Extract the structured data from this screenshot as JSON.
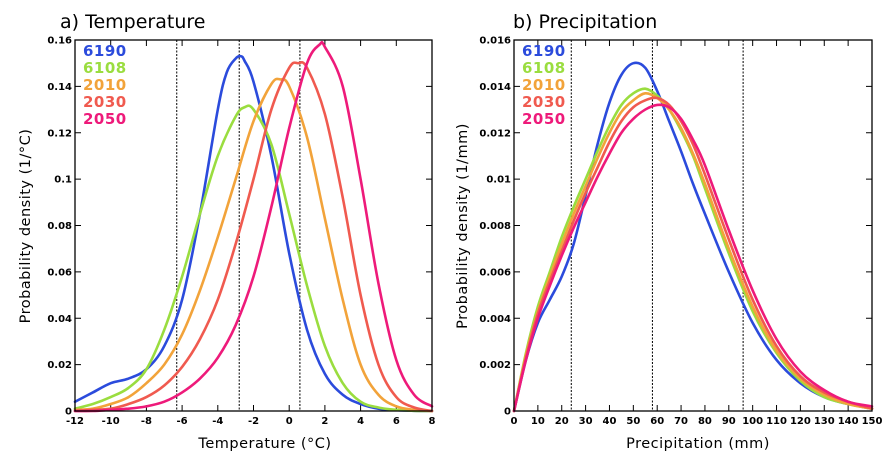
{
  "colors": {
    "6190": "#2b4bdc",
    "6108": "#9add3f",
    "2010": "#f2a33a",
    "2030": "#f05a4f",
    "2050": "#ee1a7a"
  },
  "chart_data": [
    {
      "type": "line",
      "title": "a) Temperature",
      "xlabel": "Temperature (°C)",
      "ylabel": "Probability density (1/°C)",
      "xlim": [
        -12,
        8
      ],
      "ylim": [
        0,
        0.16
      ],
      "xticks": [
        -12,
        -10,
        -8,
        -6,
        -4,
        -2,
        0,
        2,
        4,
        6,
        8
      ],
      "xtick_labels": [
        "-12",
        "-10",
        "-8",
        "-6",
        "-4",
        "-2",
        "0",
        "2",
        "4",
        "6",
        "8"
      ],
      "yticks": [
        0,
        0.02,
        0.04,
        0.06,
        0.08,
        0.1,
        0.12,
        0.14,
        0.16
      ],
      "ytick_labels": [
        "0",
        "0.02",
        "0.04",
        "0.06",
        "0.08",
        "0.1",
        "0.12",
        "0.14",
        "0.16"
      ],
      "vlines": [
        -6.3,
        -2.8,
        0.6
      ],
      "legend_position": "top-left",
      "grid": false,
      "series": [
        {
          "name": "6190",
          "color": "#2b4bdc",
          "x": [
            -12,
            -11,
            -10,
            -9,
            -8,
            -7,
            -6,
            -5,
            -4,
            -3.5,
            -3,
            -2.7,
            -2.5,
            -2,
            -1,
            0,
            1,
            2,
            3,
            4,
            5,
            6,
            7,
            8
          ],
          "y": [
            0.004,
            0.008,
            0.012,
            0.014,
            0.018,
            0.028,
            0.048,
            0.085,
            0.13,
            0.146,
            0.152,
            0.153,
            0.151,
            0.142,
            0.11,
            0.068,
            0.035,
            0.016,
            0.007,
            0.003,
            0.001,
            0.0004,
            0.0001,
            0
          ]
        },
        {
          "name": "6108",
          "color": "#9add3f",
          "x": [
            -12,
            -11,
            -10,
            -9,
            -8,
            -7,
            -6,
            -5,
            -4,
            -3,
            -2.5,
            -2,
            -1,
            0,
            1,
            2,
            3,
            4,
            5,
            6,
            7,
            8
          ],
          "y": [
            0.001,
            0.003,
            0.006,
            0.01,
            0.018,
            0.035,
            0.058,
            0.085,
            0.11,
            0.127,
            0.131,
            0.13,
            0.115,
            0.085,
            0.054,
            0.028,
            0.012,
            0.004,
            0.0015,
            0.0005,
            0.0001,
            0
          ]
        },
        {
          "name": "2010",
          "color": "#f2a33a",
          "x": [
            -12,
            -11,
            -10,
            -9,
            -8,
            -7,
            -6,
            -5,
            -4,
            -3,
            -2,
            -1,
            -0.5,
            0,
            1,
            2,
            3,
            4,
            5,
            6,
            7,
            8
          ],
          "y": [
            0.0005,
            0.001,
            0.003,
            0.006,
            0.012,
            0.02,
            0.033,
            0.052,
            0.075,
            0.1,
            0.125,
            0.141,
            0.143,
            0.14,
            0.118,
            0.083,
            0.048,
            0.02,
            0.007,
            0.002,
            0.0005,
            0
          ]
        },
        {
          "name": "2030",
          "color": "#f05a4f",
          "x": [
            -12,
            -11,
            -10,
            -9,
            -8,
            -7,
            -6,
            -5,
            -4,
            -3,
            -2,
            -1,
            0,
            0.5,
            1,
            2,
            3,
            4,
            5,
            6,
            7,
            8
          ],
          "y": [
            0,
            0.0005,
            0.001,
            0.003,
            0.006,
            0.011,
            0.019,
            0.031,
            0.048,
            0.072,
            0.1,
            0.13,
            0.148,
            0.15,
            0.148,
            0.128,
            0.092,
            0.05,
            0.02,
            0.006,
            0.0015,
            0
          ]
        },
        {
          "name": "2050",
          "color": "#ee1a7a",
          "x": [
            -12,
            -11,
            -10,
            -9,
            -8,
            -7,
            -6,
            -5,
            -4,
            -3,
            -2,
            -1,
            0,
            1,
            1.7,
            2,
            3,
            4,
            5,
            6,
            7,
            8
          ],
          "y": [
            0,
            0,
            0.0005,
            0.001,
            0.002,
            0.004,
            0.008,
            0.014,
            0.023,
            0.037,
            0.058,
            0.088,
            0.122,
            0.15,
            0.158,
            0.157,
            0.14,
            0.1,
            0.055,
            0.022,
            0.007,
            0.002
          ]
        }
      ]
    },
    {
      "type": "line",
      "title": "b) Precipitation",
      "xlabel": "Precipitation (mm)",
      "ylabel": "Probability density (1/mm)",
      "xlim": [
        0,
        150
      ],
      "ylim": [
        0,
        0.016
      ],
      "xticks": [
        0,
        10,
        20,
        30,
        40,
        50,
        60,
        70,
        80,
        90,
        100,
        110,
        120,
        130,
        140,
        150
      ],
      "xtick_labels": [
        "0",
        "10",
        "20",
        "30",
        "40",
        "50",
        "60",
        "70",
        "80",
        "90",
        "100",
        "110",
        "120",
        "130",
        "140",
        "150"
      ],
      "yticks": [
        0,
        0.002,
        0.004,
        0.006,
        0.008,
        0.01,
        0.012,
        0.014,
        0.016
      ],
      "ytick_labels": [
        "0",
        "0.002",
        "0.004",
        "0.006",
        "0.008",
        "0.01",
        "0.012",
        "0.014",
        "0.016"
      ],
      "vlines": [
        24,
        58,
        96
      ],
      "legend_position": "top-left",
      "grid": false,
      "series": [
        {
          "name": "6190",
          "color": "#2b4bdc",
          "x": [
            0,
            5,
            10,
            15,
            20,
            25,
            30,
            35,
            40,
            45,
            50,
            55,
            60,
            65,
            70,
            75,
            80,
            90,
            100,
            110,
            120,
            130,
            140,
            150
          ],
          "y": [
            0,
            0.0022,
            0.0038,
            0.0048,
            0.0058,
            0.0072,
            0.0093,
            0.0115,
            0.0133,
            0.0145,
            0.015,
            0.0148,
            0.0138,
            0.0125,
            0.0112,
            0.0098,
            0.0085,
            0.006,
            0.0038,
            0.0022,
            0.0012,
            0.0006,
            0.0003,
            0.0001
          ]
        },
        {
          "name": "6108",
          "color": "#9add3f",
          "x": [
            0,
            5,
            10,
            15,
            20,
            25,
            30,
            35,
            40,
            45,
            50,
            55,
            60,
            65,
            70,
            75,
            80,
            90,
            100,
            110,
            120,
            130,
            140,
            150
          ],
          "y": [
            0,
            0.0025,
            0.0045,
            0.006,
            0.0075,
            0.0088,
            0.01,
            0.0112,
            0.0123,
            0.0132,
            0.0137,
            0.0139,
            0.0136,
            0.013,
            0.0121,
            0.011,
            0.0096,
            0.0068,
            0.0043,
            0.0025,
            0.0013,
            0.0006,
            0.0003,
            0.0001
          ]
        },
        {
          "name": "2010",
          "color": "#f2a33a",
          "x": [
            0,
            5,
            10,
            15,
            20,
            25,
            30,
            35,
            40,
            45,
            50,
            55,
            60,
            65,
            70,
            75,
            80,
            90,
            100,
            110,
            120,
            130,
            140,
            150
          ],
          "y": [
            0,
            0.0024,
            0.0043,
            0.0058,
            0.0072,
            0.0085,
            0.0097,
            0.0109,
            0.012,
            0.0129,
            0.0134,
            0.0137,
            0.0135,
            0.013,
            0.0122,
            0.0111,
            0.0098,
            0.007,
            0.0045,
            0.0026,
            0.0014,
            0.0007,
            0.0003,
            0.0001
          ]
        },
        {
          "name": "2030",
          "color": "#f05a4f",
          "x": [
            0,
            5,
            10,
            15,
            20,
            25,
            30,
            35,
            40,
            45,
            50,
            55,
            60,
            65,
            70,
            75,
            80,
            90,
            100,
            110,
            120,
            130,
            140,
            150
          ],
          "y": [
            0,
            0.0023,
            0.0042,
            0.0056,
            0.0069,
            0.0082,
            0.0094,
            0.0105,
            0.0116,
            0.0125,
            0.0131,
            0.0134,
            0.0135,
            0.0132,
            0.0125,
            0.0115,
            0.0102,
            0.0074,
            0.0048,
            0.0028,
            0.0015,
            0.0008,
            0.0004,
            0.0001
          ]
        },
        {
          "name": "2050",
          "color": "#ee1a7a",
          "x": [
            0,
            5,
            10,
            15,
            20,
            25,
            30,
            35,
            40,
            45,
            50,
            55,
            60,
            65,
            70,
            75,
            80,
            90,
            100,
            110,
            120,
            130,
            140,
            150
          ],
          "y": [
            0,
            0.0022,
            0.004,
            0.0054,
            0.0067,
            0.0079,
            0.009,
            0.0101,
            0.0111,
            0.012,
            0.0126,
            0.013,
            0.0132,
            0.0131,
            0.0126,
            0.0117,
            0.0106,
            0.0078,
            0.0052,
            0.0031,
            0.0017,
            0.0009,
            0.0004,
            0.0002
          ]
        }
      ]
    }
  ]
}
